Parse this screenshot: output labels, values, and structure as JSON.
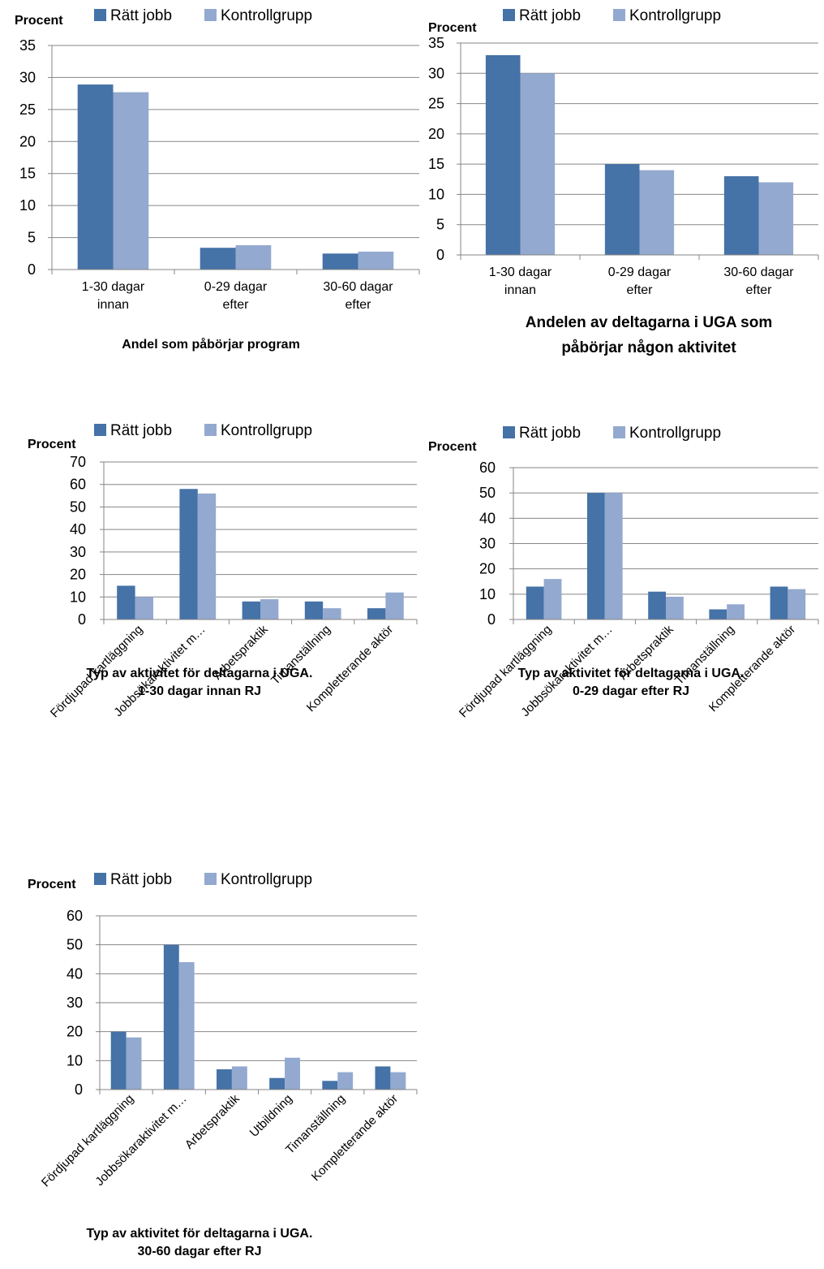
{
  "colors": {
    "ratt_jobb": "#4572A7",
    "kontrollgrupp": "#93A9CF",
    "grid": "#868686"
  },
  "chart_data": [
    {
      "type": "bar",
      "ylabel": "Procent",
      "ylim": [
        0,
        35
      ],
      "yticks": [
        0,
        5,
        10,
        15,
        20,
        25,
        30,
        35
      ],
      "categories": [
        "1-30 dagar innan",
        "0-29 dagar efter",
        "30-60 dagar efter"
      ],
      "series": [
        {
          "name": "Rätt jobb",
          "values": [
            28.9,
            3.4,
            2.5
          ]
        },
        {
          "name": "Kontrollgrupp",
          "values": [
            27.7,
            3.8,
            2.8
          ]
        }
      ],
      "caption": [
        "Andel som påbörjar program"
      ],
      "legend": "top",
      "grid": true
    },
    {
      "type": "bar",
      "ylabel": "Procent",
      "ylim": [
        0,
        35
      ],
      "yticks": [
        0,
        5,
        10,
        15,
        20,
        25,
        30,
        35
      ],
      "categories": [
        "1-30 dagar innan",
        "0-29 dagar efter",
        "30-60 dagar efter"
      ],
      "series": [
        {
          "name": "Rätt jobb",
          "values": [
            33,
            15,
            13
          ]
        },
        {
          "name": "Kontrollgrupp",
          "values": [
            30,
            14,
            12
          ]
        }
      ],
      "caption": [
        "Andelen av deltagarna i UGA som",
        "påbörjar någon aktivitet"
      ],
      "legend": "top",
      "grid": true
    },
    {
      "type": "bar",
      "ylabel": "Procent",
      "ylim": [
        0,
        70
      ],
      "yticks": [
        0,
        10,
        20,
        30,
        40,
        50,
        60,
        70
      ],
      "categories": [
        "Fördjupad kartläggning",
        "Jobbsökaraktivitet m…",
        "Arbetspraktik",
        "Timanställning",
        "Kompletterande aktör"
      ],
      "series": [
        {
          "name": "Rätt jobb",
          "values": [
            15,
            58,
            8,
            8,
            5
          ]
        },
        {
          "name": "Kontrollgrupp",
          "values": [
            10,
            56,
            9,
            5,
            12
          ]
        }
      ],
      "caption": [
        "Typ av aktivitet för deltagarna i UGA.",
        "1-30 dagar innan RJ"
      ],
      "legend": "top",
      "grid": true
    },
    {
      "type": "bar",
      "ylabel": "Procent",
      "ylim": [
        0,
        60
      ],
      "yticks": [
        0,
        10,
        20,
        30,
        40,
        50,
        60
      ],
      "categories": [
        "Fördjupad kartläggning",
        "Jobbsökaraktivitet m…",
        "Arbetspraktik",
        "Timanställning",
        "Kompletterande aktör"
      ],
      "series": [
        {
          "name": "Rätt jobb",
          "values": [
            13,
            50,
            11,
            4,
            13
          ]
        },
        {
          "name": "Kontrollgrupp",
          "values": [
            16,
            50,
            9,
            6,
            12
          ]
        }
      ],
      "caption": [
        "Typ av aktivitet för deltagarna i UGA.",
        "0-29 dagar efter RJ"
      ],
      "legend": "top",
      "grid": true
    },
    {
      "type": "bar",
      "ylabel": "Procent",
      "ylim": [
        0,
        60
      ],
      "yticks": [
        0,
        10,
        20,
        30,
        40,
        50,
        60
      ],
      "categories": [
        "Fördjupad kartläggning",
        "Jobbsökaraktivitet m…",
        "Arbetspraktik",
        "Utbildning",
        "Timanställning",
        "Kompletterande aktör"
      ],
      "series": [
        {
          "name": "Rätt jobb",
          "values": [
            20,
            50,
            7,
            4,
            3,
            8
          ]
        },
        {
          "name": "Kontrollgrupp",
          "values": [
            18,
            44,
            8,
            11,
            6,
            6
          ]
        }
      ],
      "caption": [
        "Typ av aktivitet för deltagarna i UGA.",
        "30-60 dagar efter RJ"
      ],
      "legend": "top",
      "grid": true
    }
  ]
}
